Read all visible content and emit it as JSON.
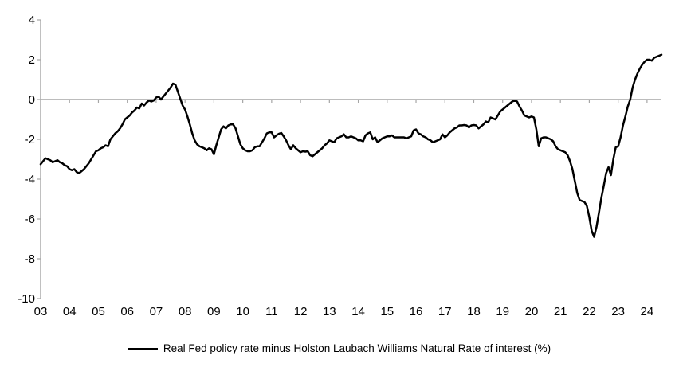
{
  "chart_data": {
    "type": "line",
    "title": "",
    "xlabel": "",
    "ylabel": "",
    "ylim": [
      -10,
      4
    ],
    "y_ticks": [
      4,
      2,
      0,
      -2,
      -4,
      -6,
      -8,
      -10
    ],
    "x_tick_labels": [
      "03",
      "04",
      "05",
      "06",
      "07",
      "08",
      "09",
      "10",
      "11",
      "12",
      "13",
      "14",
      "15",
      "16",
      "17",
      "18",
      "19",
      "20",
      "21",
      "22",
      "23",
      "24"
    ],
    "grid": "zero-line-only",
    "legend_position": "bottom-center",
    "axis_color": "#a6a6a6",
    "line_color": "#000000",
    "series": [
      {
        "name": "Real Fed policy rate minus Holston Laubach Williams Natural Rate of interest (%)",
        "start": "2003-01",
        "frequency": "monthly",
        "values": [
          -3.25,
          -3.1,
          -2.95,
          -3.0,
          -3.05,
          -3.15,
          -3.1,
          -3.05,
          -3.15,
          -3.2,
          -3.3,
          -3.35,
          -3.5,
          -3.55,
          -3.5,
          -3.65,
          -3.7,
          -3.6,
          -3.5,
          -3.35,
          -3.2,
          -3.0,
          -2.8,
          -2.6,
          -2.55,
          -2.45,
          -2.4,
          -2.3,
          -2.35,
          -2.0,
          -1.85,
          -1.7,
          -1.6,
          -1.45,
          -1.25,
          -1.0,
          -0.9,
          -0.8,
          -0.65,
          -0.55,
          -0.4,
          -0.45,
          -0.2,
          -0.3,
          -0.15,
          -0.05,
          -0.1,
          -0.05,
          0.1,
          0.15,
          0.0,
          0.15,
          0.3,
          0.45,
          0.6,
          0.8,
          0.75,
          0.4,
          0.05,
          -0.3,
          -0.5,
          -0.85,
          -1.25,
          -1.7,
          -2.05,
          -2.25,
          -2.35,
          -2.4,
          -2.45,
          -2.55,
          -2.45,
          -2.5,
          -2.75,
          -2.3,
          -1.9,
          -1.5,
          -1.35,
          -1.45,
          -1.3,
          -1.25,
          -1.25,
          -1.45,
          -1.85,
          -2.25,
          -2.45,
          -2.55,
          -2.6,
          -2.6,
          -2.55,
          -2.4,
          -2.35,
          -2.35,
          -2.15,
          -1.95,
          -1.7,
          -1.65,
          -1.65,
          -1.9,
          -1.8,
          -1.72,
          -1.68,
          -1.85,
          -2.05,
          -2.3,
          -2.5,
          -2.3,
          -2.45,
          -2.55,
          -2.65,
          -2.6,
          -2.62,
          -2.6,
          -2.8,
          -2.85,
          -2.75,
          -2.65,
          -2.55,
          -2.45,
          -2.3,
          -2.2,
          -2.05,
          -2.1,
          -2.15,
          -1.95,
          -1.9,
          -1.85,
          -1.75,
          -1.9,
          -1.9,
          -1.85,
          -1.9,
          -1.95,
          -2.05,
          -2.05,
          -2.1,
          -1.8,
          -1.7,
          -1.65,
          -2.0,
          -1.9,
          -2.15,
          -2.05,
          -1.95,
          -1.9,
          -1.85,
          -1.85,
          -1.8,
          -1.9,
          -1.9,
          -1.9,
          -1.9,
          -1.9,
          -1.95,
          -1.9,
          -1.85,
          -1.55,
          -1.5,
          -1.7,
          -1.75,
          -1.85,
          -1.9,
          -2.0,
          -2.05,
          -2.15,
          -2.1,
          -2.05,
          -2.0,
          -1.75,
          -1.9,
          -1.8,
          -1.65,
          -1.55,
          -1.45,
          -1.4,
          -1.3,
          -1.3,
          -1.28,
          -1.3,
          -1.4,
          -1.3,
          -1.28,
          -1.3,
          -1.45,
          -1.35,
          -1.25,
          -1.1,
          -1.15,
          -0.9,
          -0.95,
          -1.0,
          -0.8,
          -0.6,
          -0.5,
          -0.4,
          -0.3,
          -0.2,
          -0.1,
          -0.05,
          -0.1,
          -0.35,
          -0.55,
          -0.8,
          -0.85,
          -0.9,
          -0.85,
          -0.9,
          -1.5,
          -2.35,
          -1.95,
          -1.9,
          -1.9,
          -1.95,
          -2.0,
          -2.1,
          -2.35,
          -2.5,
          -2.55,
          -2.6,
          -2.65,
          -2.8,
          -3.1,
          -3.5,
          -4.1,
          -4.7,
          -5.05,
          -5.1,
          -5.15,
          -5.35,
          -5.9,
          -6.6,
          -6.9,
          -6.4,
          -5.7,
          -4.95,
          -4.35,
          -3.7,
          -3.4,
          -3.8,
          -3.0,
          -2.4,
          -2.35,
          -1.9,
          -1.3,
          -0.85,
          -0.35,
          0.0,
          0.6,
          1.0,
          1.3,
          1.55,
          1.75,
          1.9,
          2.0,
          2.0,
          1.95,
          2.1,
          2.15,
          2.2,
          2.25
        ]
      }
    ]
  },
  "legend": {
    "label": "Real Fed policy rate minus Holston Laubach Williams Natural Rate of interest (%)"
  }
}
